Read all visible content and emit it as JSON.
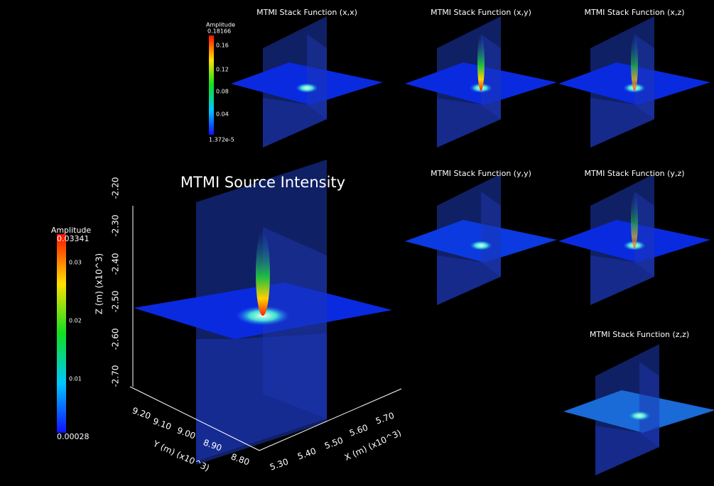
{
  "main": {
    "title": "MTMI Source Intensity",
    "colorbar": {
      "title": "Amplitude",
      "max": "0.03341",
      "ticks": [
        "0.03",
        "0.02",
        "0.01"
      ],
      "min": "0.00028"
    },
    "z_axis": {
      "label": "Z (m) (x10^3)",
      "ticks": [
        "-2.20",
        "-2.30",
        "-2.40",
        "-2.50",
        "-2.60",
        "-2.70"
      ]
    },
    "y_axis": {
      "label": "Y (m) (x10^3)",
      "ticks": [
        "9.20",
        "9.10",
        "9.00",
        "8.90",
        "8.80"
      ]
    },
    "x_axis": {
      "label": "X (m) (x10^3)",
      "ticks": [
        "5.30",
        "5.40",
        "5.50",
        "5.60",
        "5.70"
      ]
    }
  },
  "inset_colorbar": {
    "title": "Amplitude",
    "max": "0.18166",
    "ticks": [
      "0.16",
      "0.12",
      "0.08",
      "0.04"
    ],
    "min": "1.372e-5"
  },
  "panels": [
    {
      "title": "MTMI Stack Function (x,x)"
    },
    {
      "title": "MTMI Stack Function (x,y)"
    },
    {
      "title": "MTMI Stack Function (x,z)"
    },
    {
      "title": "MTMI Stack Function (y,y)"
    },
    {
      "title": "MTMI Stack Function (y,z)"
    },
    {
      "title": "MTMI Stack Function (z,z)"
    }
  ]
}
